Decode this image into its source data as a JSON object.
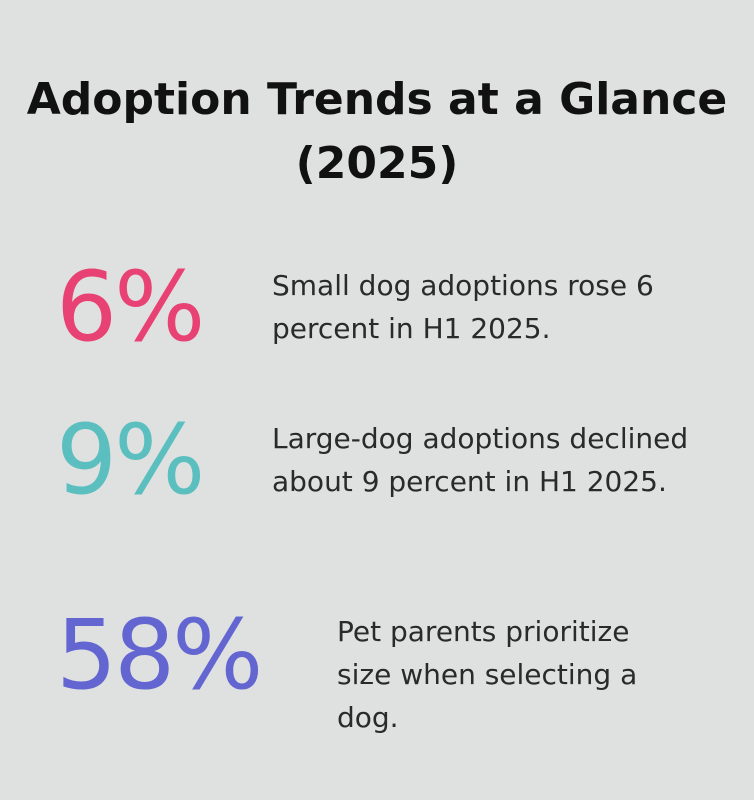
{
  "title": "Adoption Trends at a Glance (2025)",
  "stats": [
    {
      "value": "6%",
      "text": "Small dog adoptions rose 6 percent in H1 2025.",
      "color": "#e84274"
    },
    {
      "value": "9%",
      "text": "Large-dog adoptions declined about 9 percent in H1 2025.",
      "color": "#5bbfbf"
    },
    {
      "value": "58%",
      "text": "Pet parents prioritize size when selecting a dog.",
      "color": "#6366d1"
    }
  ]
}
